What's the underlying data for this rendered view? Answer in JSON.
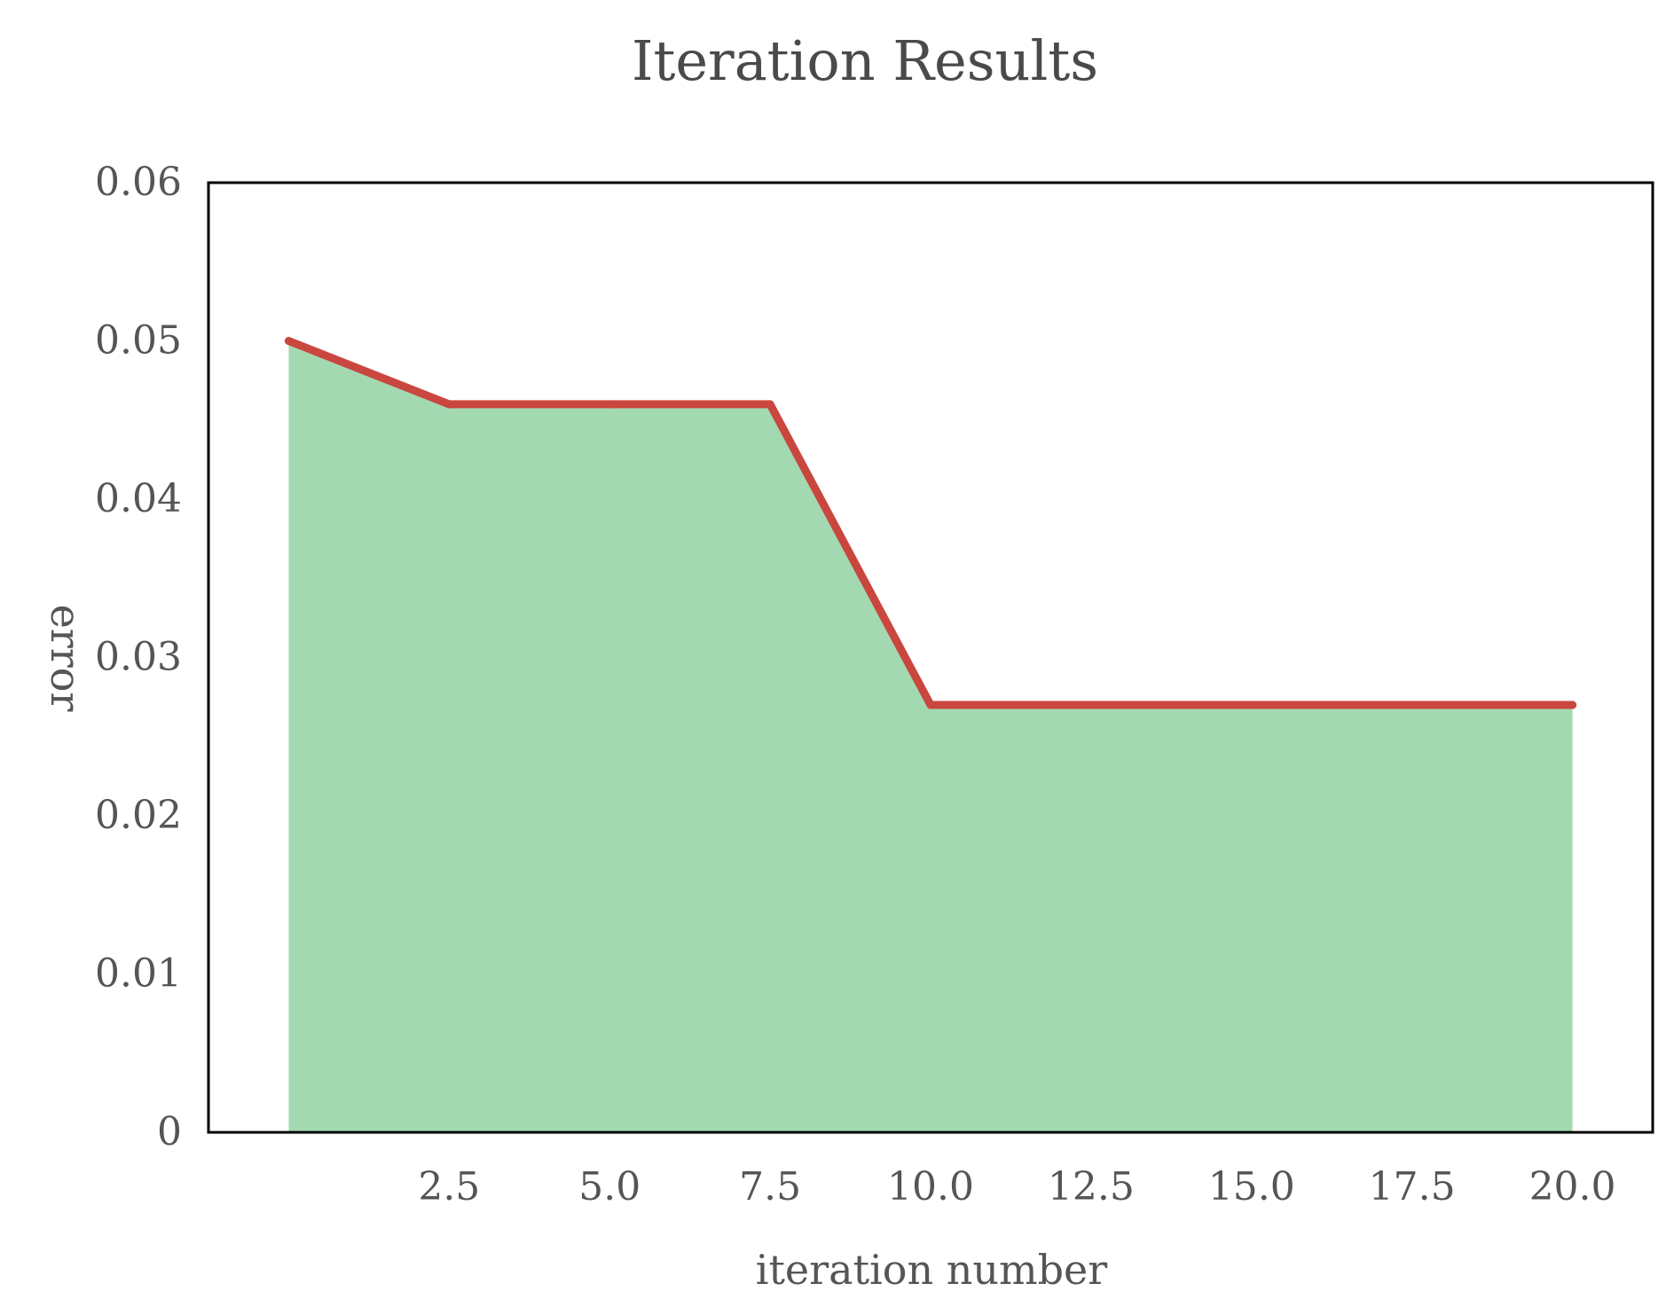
{
  "chart_data": {
    "type": "area",
    "title": "Iteration Results",
    "xlabel": "iteration number",
    "ylabel": "error",
    "x": [
      0,
      2.5,
      5.0,
      7.5,
      10.0,
      12.5,
      15.0,
      17.5,
      20.0
    ],
    "series": [
      {
        "values": [
          0.05,
          0.046,
          0.046,
          0.046,
          0.027,
          0.027,
          0.027,
          0.027,
          0.027
        ]
      }
    ],
    "xlim": [
      -1.25,
      21.25
    ],
    "ylim": [
      0,
      0.06
    ],
    "x_ticks": [
      "2.5",
      "5.0",
      "7.5",
      "10.0",
      "12.5",
      "15.0",
      "17.5",
      "20.0"
    ],
    "y_ticks": [
      "0",
      "0.01",
      "0.02",
      "0.03",
      "0.04",
      "0.05",
      "0.06"
    ],
    "grid": false,
    "colors": {
      "fill": "#a3d9b1",
      "line": "#c9473f",
      "frame": "#000000"
    }
  }
}
